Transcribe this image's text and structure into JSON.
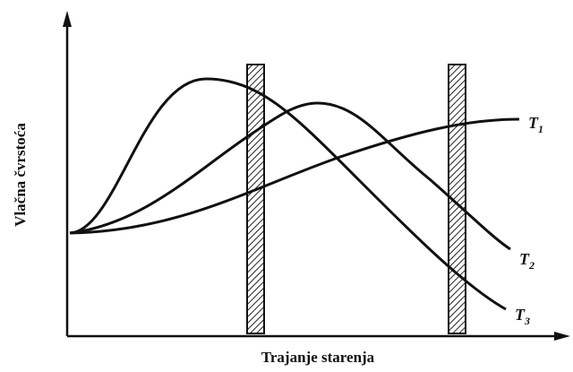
{
  "axes": {
    "y_label": "Vlačna čvrstoća",
    "x_label": "Trajanje starenja"
  },
  "curves": [
    {
      "label": "T",
      "subscript": "1"
    },
    {
      "label": "T",
      "subscript": "2"
    },
    {
      "label": "T",
      "subscript": "3"
    }
  ]
}
